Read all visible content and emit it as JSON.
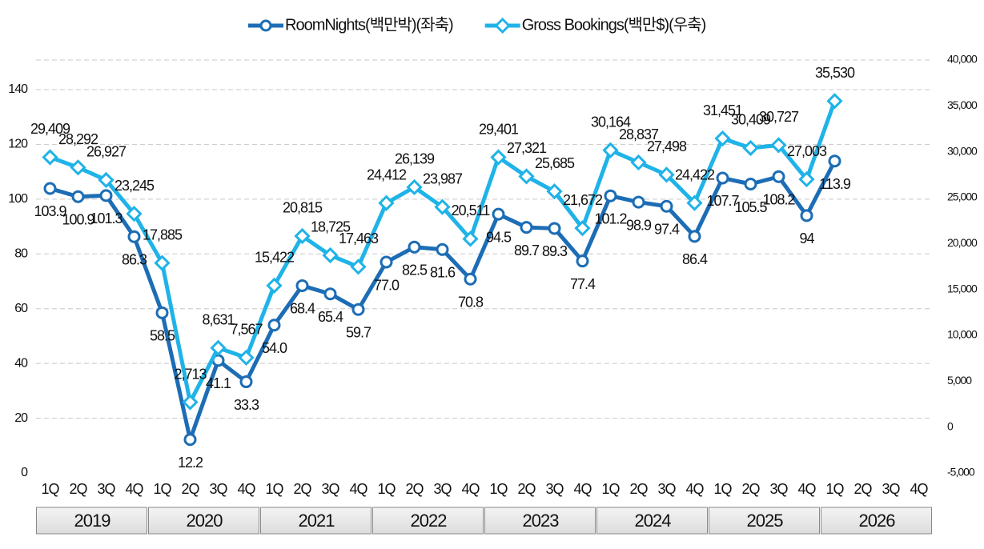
{
  "chart_data": {
    "type": "line",
    "categories": [
      "1Q",
      "2Q",
      "3Q",
      "4Q",
      "1Q",
      "2Q",
      "3Q",
      "4Q",
      "1Q",
      "2Q",
      "3Q",
      "4Q",
      "1Q",
      "2Q",
      "3Q",
      "4Q",
      "1Q",
      "2Q",
      "3Q",
      "4Q",
      "1Q",
      "2Q",
      "3Q",
      "4Q",
      "1Q",
      "2Q",
      "3Q",
      "4Q",
      "1Q",
      "2Q",
      "3Q",
      "4Q"
    ],
    "years": [
      "2019",
      "2020",
      "2021",
      "2022",
      "2023",
      "2024",
      "2025",
      "2026"
    ],
    "series": [
      {
        "name": "RoomNights(백만박)(좌축)",
        "color": "#1c6db5",
        "axis": "y",
        "values": [
          103.9,
          100.9,
          101.3,
          86.3,
          58.5,
          12.2,
          41.1,
          33.3,
          54.0,
          68.4,
          65.4,
          59.7,
          77.0,
          82.5,
          81.6,
          70.8,
          94.5,
          89.7,
          89.3,
          77.4,
          101.2,
          98.9,
          97.4,
          86.4,
          107.7,
          105.5,
          108.2,
          94,
          113.9,
          null,
          null,
          null
        ],
        "value_labels": [
          "103.9",
          "100.9",
          "101.3",
          "86.3",
          "58.5",
          "12.2",
          "41.1",
          "33.3",
          "54.0",
          "68.4",
          "65.4",
          "59.7",
          "77.0",
          "82.5",
          "81.6",
          "70.8",
          "94.5",
          "89.7",
          "89.3",
          "77.4",
          "101.2",
          "98.9",
          "97.4",
          "86.4",
          "107.7",
          "105.5",
          "108.2",
          "94",
          "113.9",
          null,
          null,
          null
        ]
      },
      {
        "name": "Gross Bookings(백만$)(우축)",
        "color": "#1fb3e8",
        "axis": "y2",
        "values": [
          29409,
          28292,
          26927,
          23245,
          17885,
          2713,
          8631,
          7567,
          15422,
          20815,
          18725,
          17463,
          24412,
          26139,
          23987,
          20511,
          29401,
          27321,
          25685,
          21672,
          30164,
          28837,
          27498,
          24422,
          31451,
          30409,
          30727,
          27003,
          35530,
          null,
          null,
          null
        ],
        "value_labels": [
          "29,409",
          "28,292",
          "26,927",
          "23,245",
          "17,885",
          "2,713",
          "8,631",
          "7,567",
          "15,422",
          "20,815",
          "18,725",
          "17,463",
          "24,412",
          "26,139",
          "23,987",
          "20,511",
          "29,401",
          "27,321",
          "25,685",
          "21,672",
          "30,164",
          "28,837",
          "27,498",
          "24,422",
          "31,451",
          "30,409",
          "30,727",
          "27,003",
          "35,530",
          null,
          null,
          null
        ]
      }
    ],
    "ylim": [
      0,
      150.8
    ],
    "yticks": [
      0,
      20,
      40,
      60,
      80,
      100,
      120,
      140
    ],
    "y2lim": [
      -5000,
      40000
    ],
    "y2ticks": [
      {
        "value": -5000,
        "label": "-5,000"
      },
      0,
      {
        "value": 5000,
        "label": "5,000"
      },
      {
        "value": 10000,
        "label": "10,000"
      },
      {
        "value": 15000,
        "label": "15,000"
      },
      {
        "value": 20000,
        "label": "20,000"
      },
      {
        "value": 25000,
        "label": "25,000"
      },
      {
        "value": 30000,
        "label": "30,000"
      },
      {
        "value": 35000,
        "label": "35,000"
      },
      {
        "value": 40000,
        "label": "40,000"
      }
    ],
    "grid": true,
    "legend": "top"
  }
}
